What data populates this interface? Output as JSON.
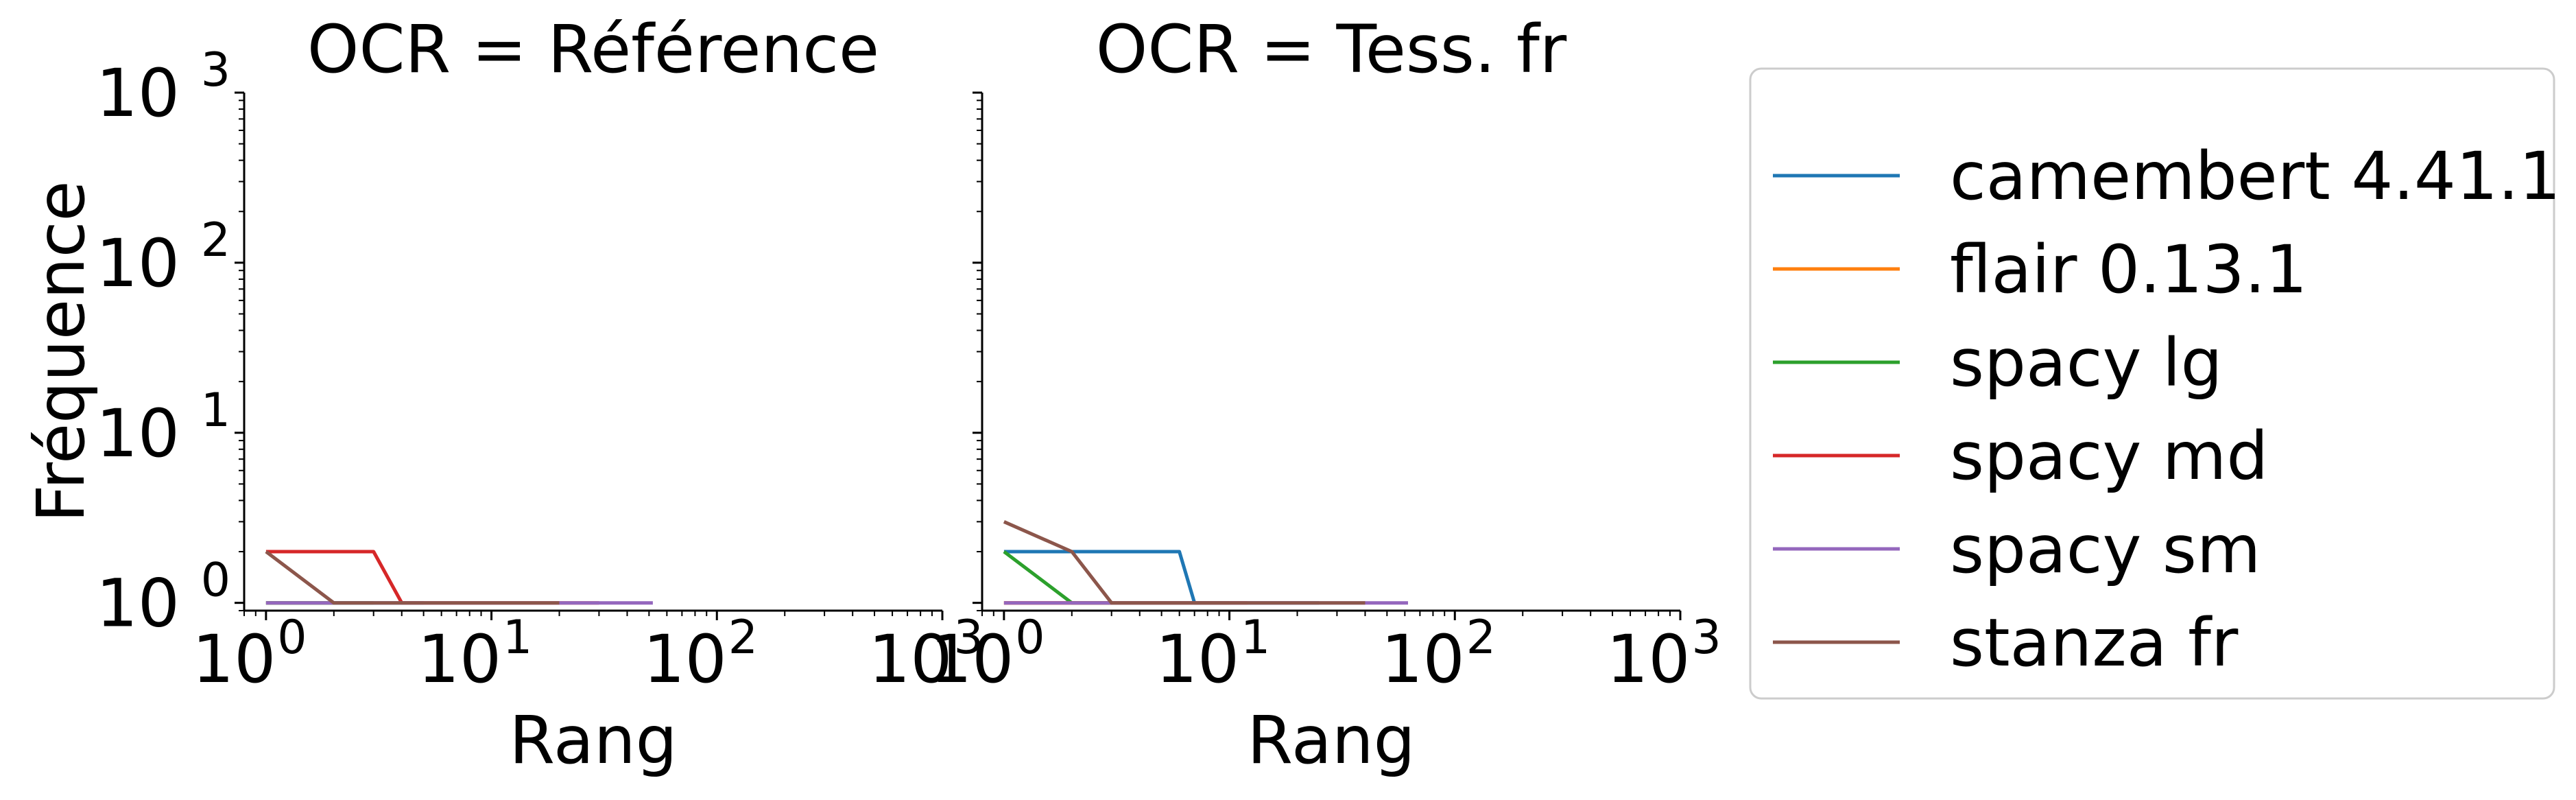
{
  "chart_data": [
    {
      "type": "line",
      "title": "OCR = Référence",
      "xlabel": "Rang",
      "ylabel": "Fréquence",
      "x_scale": "log",
      "y_scale": "log",
      "xlim": [
        0.8,
        1000
      ],
      "ylim": [
        0.9,
        1000
      ],
      "x_ticks": [
        {
          "base": "10",
          "exp": "0",
          "value": 1
        },
        {
          "base": "10",
          "exp": "1",
          "value": 10
        },
        {
          "base": "10",
          "exp": "2",
          "value": 100
        },
        {
          "base": "10",
          "exp": "3",
          "value": 1000
        }
      ],
      "y_ticks": [
        {
          "base": "10",
          "exp": "0",
          "value": 1
        },
        {
          "base": "10",
          "exp": "1",
          "value": 10
        },
        {
          "base": "10",
          "exp": "2",
          "value": 100
        },
        {
          "base": "10",
          "exp": "3",
          "value": 1000
        }
      ],
      "grid": false,
      "series": [
        {
          "name": "camembert 4.41.1",
          "color": "#1f77b4",
          "points": [
            [
              1,
              1
            ],
            [
              5,
              1
            ]
          ]
        },
        {
          "name": "flair 0.13.1",
          "color": "#ff7f0e",
          "points": [
            [
              1,
              1
            ],
            [
              2,
              1
            ]
          ]
        },
        {
          "name": "spacy lg",
          "color": "#2ca02c",
          "points": [
            [
              1,
              1
            ],
            [
              3,
              1
            ]
          ]
        },
        {
          "name": "spacy md",
          "color": "#d62728",
          "points": [
            [
              1,
              2
            ],
            [
              3,
              2
            ],
            [
              4,
              1
            ],
            [
              30,
              1
            ]
          ]
        },
        {
          "name": "spacy sm",
          "color": "#9467bd",
          "points": [
            [
              1,
              1
            ],
            [
              52,
              1
            ]
          ]
        },
        {
          "name": "stanza fr",
          "color": "#8c564b",
          "points": [
            [
              1,
              2
            ],
            [
              2,
              1
            ],
            [
              20,
              1
            ]
          ]
        }
      ]
    },
    {
      "type": "line",
      "title": "OCR = Tess. fr",
      "xlabel": "Rang",
      "ylabel": "",
      "x_scale": "log",
      "y_scale": "log",
      "xlim": [
        0.8,
        1000
      ],
      "ylim": [
        0.9,
        1000
      ],
      "x_ticks": [
        {
          "base": "10",
          "exp": "0",
          "value": 1
        },
        {
          "base": "10",
          "exp": "1",
          "value": 10
        },
        {
          "base": "10",
          "exp": "2",
          "value": 100
        },
        {
          "base": "10",
          "exp": "3",
          "value": 1000
        }
      ],
      "grid": false,
      "series": [
        {
          "name": "camembert 4.41.1",
          "color": "#1f77b4",
          "points": [
            [
              1,
              2
            ],
            [
              6,
              2
            ],
            [
              7,
              1
            ],
            [
              25,
              1
            ]
          ]
        },
        {
          "name": "flair 0.13.1",
          "color": "#ff7f0e",
          "points": [
            [
              1,
              1
            ],
            [
              3,
              1
            ]
          ]
        },
        {
          "name": "spacy lg",
          "color": "#2ca02c",
          "points": [
            [
              1,
              2
            ],
            [
              2,
              1
            ],
            [
              10,
              1
            ]
          ]
        },
        {
          "name": "spacy md",
          "color": "#d62728",
          "points": [
            [
              1,
              1
            ],
            [
              12,
              1
            ]
          ]
        },
        {
          "name": "spacy sm",
          "color": "#9467bd",
          "points": [
            [
              1,
              1
            ],
            [
              62,
              1
            ]
          ]
        },
        {
          "name": "stanza fr",
          "color": "#8c564b",
          "points": [
            [
              1,
              3
            ],
            [
              2,
              2
            ],
            [
              3,
              1
            ],
            [
              40,
              1
            ]
          ]
        }
      ]
    }
  ],
  "legend": {
    "placement": "right",
    "entries": [
      {
        "label": "camembert 4.41.1",
        "color": "#1f77b4"
      },
      {
        "label": "flair 0.13.1",
        "color": "#ff7f0e"
      },
      {
        "label": "spacy lg",
        "color": "#2ca02c"
      },
      {
        "label": "spacy md",
        "color": "#d62728"
      },
      {
        "label": "spacy sm",
        "color": "#9467bd"
      },
      {
        "label": "stanza fr",
        "color": "#8c564b"
      }
    ]
  }
}
